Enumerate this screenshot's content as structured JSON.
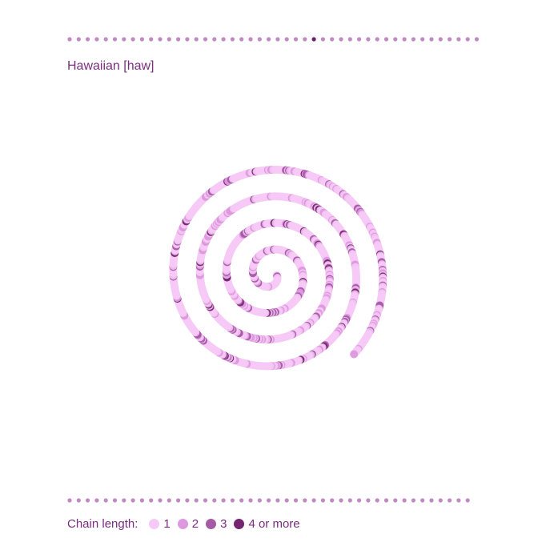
{
  "title": "Hawaiian [haw]",
  "pager": {
    "dot_count": 46,
    "active_index": 27
  },
  "legend": {
    "title": "Chain length:",
    "items": [
      {
        "label": "1",
        "color": "#f6c9f6"
      },
      {
        "label": "2",
        "color": "#dd99dd"
      },
      {
        "label": "3",
        "color": "#a55aa5"
      },
      {
        "label": "4 or more",
        "color": "#74266f"
      }
    ]
  },
  "colors": {
    "text": "#7b2d80",
    "pager_dot": "#c08ac0",
    "pager_active": "#6b1f6b",
    "guide": "#999999"
  },
  "chart_data": {
    "type": "scatter",
    "layout": "spiral",
    "point_count": 1100,
    "categories": [
      "1",
      "2",
      "3",
      "4 or more"
    ],
    "frequencies": [
      0.78,
      0.12,
      0.06,
      0.04
    ],
    "xlabel": "",
    "ylabel": "",
    "grid": false,
    "legend_position": "bottom-left"
  }
}
